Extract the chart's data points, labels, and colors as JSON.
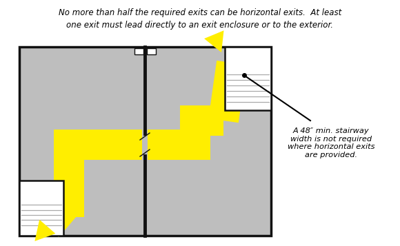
{
  "bg_color": "#ffffff",
  "floor_color": "#bebebe",
  "wall_color": "#111111",
  "yellow": "#ffee00",
  "title_line1": "No more than half the required exits can be horizontal exits.  At least",
  "title_line2": "one exit must lead directly to an exit enclosure or to the exterior.",
  "note_text": "A 48″ min. stairway\nwidth is not required\nwhere horizontal exits\nare provided.",
  "fig_w": 5.8,
  "fig_h": 3.57,
  "dpi": 100
}
